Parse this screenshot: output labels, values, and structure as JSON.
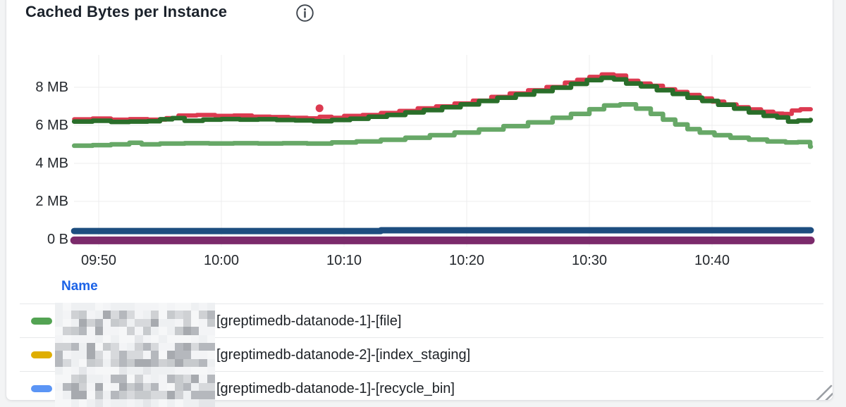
{
  "panel": {
    "title": "Cached Bytes per Instance",
    "info_icon": "info-circle-icon",
    "background": "#ffffff",
    "page_background": "#f3f4f5"
  },
  "chart_data": {
    "type": "line",
    "title": "Cached Bytes per Instance",
    "draw_style": "step-after",
    "grid": true,
    "grid_color": "#ececee",
    "x_axis": {
      "tick_labels": [
        "09:50",
        "10:00",
        "10:10",
        "10:20",
        "10:30",
        "10:40"
      ],
      "tick_minutes": [
        2,
        12,
        22,
        32,
        42,
        52
      ],
      "range_start": "09:48",
      "range_end": "10:48"
    },
    "y_axis": {
      "unit": "bytes",
      "tick_labels": [
        "8 MB",
        "6 MB",
        "4 MB",
        "2 MB",
        "0 B"
      ],
      "tick_mb": [
        8,
        6,
        4,
        2,
        0
      ],
      "ylim_mb": [
        -0.3,
        9.7
      ]
    },
    "series": [
      {
        "name": "series-crimson",
        "color": "#dc3a50",
        "width": 6,
        "points_min_mb": [
          [
            0,
            6.32
          ],
          [
            1.5,
            6.36
          ],
          [
            3,
            6.3
          ],
          [
            4.5,
            6.33
          ],
          [
            6,
            6.3
          ],
          [
            7.5,
            6.38
          ],
          [
            8.5,
            6.52
          ],
          [
            10,
            6.55
          ],
          [
            11.5,
            6.5
          ],
          [
            13,
            6.52
          ],
          [
            14.5,
            6.46
          ],
          [
            16,
            6.44
          ],
          [
            17.5,
            6.4
          ],
          [
            19,
            6.37
          ],
          [
            20,
            6.45
          ],
          [
            21,
            6.4
          ],
          [
            22,
            6.5
          ],
          [
            23.5,
            6.55
          ],
          [
            25,
            6.65
          ],
          [
            26.5,
            6.76
          ],
          [
            28,
            6.9
          ],
          [
            29.5,
            7.0
          ],
          [
            31,
            7.15
          ],
          [
            32.5,
            7.3
          ],
          [
            34,
            7.5
          ],
          [
            35.5,
            7.68
          ],
          [
            37,
            7.85
          ],
          [
            38.5,
            8.02
          ],
          [
            40,
            8.25
          ],
          [
            41,
            8.4
          ],
          [
            42,
            8.55
          ],
          [
            43,
            8.68
          ],
          [
            44,
            8.62
          ],
          [
            45,
            8.35
          ],
          [
            46,
            8.2
          ],
          [
            47,
            8.08
          ],
          [
            48,
            7.9
          ],
          [
            49,
            7.76
          ],
          [
            50,
            7.6
          ],
          [
            51,
            7.42
          ],
          [
            52,
            7.25
          ],
          [
            53,
            7.1
          ],
          [
            54,
            6.95
          ],
          [
            55,
            6.84
          ],
          [
            56,
            6.72
          ],
          [
            57,
            6.62
          ],
          [
            57.8,
            6.6
          ],
          [
            58.5,
            6.78
          ],
          [
            59.2,
            6.85
          ],
          [
            60,
            6.85
          ]
        ]
      },
      {
        "name": "series-dark-green",
        "color": "#2a6e2a",
        "width": 6.5,
        "points_min_mb": [
          [
            0,
            6.2
          ],
          [
            1.5,
            6.24
          ],
          [
            3,
            6.18
          ],
          [
            4.5,
            6.2
          ],
          [
            6,
            6.22
          ],
          [
            7,
            6.32
          ],
          [
            8,
            6.38
          ],
          [
            9,
            6.24
          ],
          [
            10.5,
            6.3
          ],
          [
            12,
            6.33
          ],
          [
            13.5,
            6.3
          ],
          [
            15,
            6.32
          ],
          [
            16.5,
            6.28
          ],
          [
            18,
            6.26
          ],
          [
            19.5,
            6.22
          ],
          [
            21,
            6.28
          ],
          [
            22.5,
            6.35
          ],
          [
            24,
            6.45
          ],
          [
            25.5,
            6.55
          ],
          [
            27,
            6.68
          ],
          [
            28.5,
            6.8
          ],
          [
            30,
            6.95
          ],
          [
            31.5,
            7.1
          ],
          [
            33,
            7.28
          ],
          [
            34.5,
            7.45
          ],
          [
            36,
            7.62
          ],
          [
            37.5,
            7.8
          ],
          [
            39,
            7.98
          ],
          [
            40.5,
            8.18
          ],
          [
            41.8,
            8.38
          ],
          [
            43,
            8.5
          ],
          [
            44,
            8.42
          ],
          [
            45,
            8.2
          ],
          [
            46.2,
            8.05
          ],
          [
            47.5,
            7.85
          ],
          [
            48.8,
            7.65
          ],
          [
            50,
            7.45
          ],
          [
            51.2,
            7.28
          ],
          [
            52.5,
            7.08
          ],
          [
            53.8,
            6.88
          ],
          [
            55,
            6.68
          ],
          [
            56.2,
            6.5
          ],
          [
            57.3,
            6.42
          ],
          [
            58.2,
            6.2
          ],
          [
            59,
            6.25
          ],
          [
            60,
            6.28
          ]
        ]
      },
      {
        "name": "series-medium-green",
        "color": "#67a867",
        "width": 6.5,
        "points_min_mb": [
          [
            0,
            4.93
          ],
          [
            1.5,
            4.96
          ],
          [
            3,
            5.0
          ],
          [
            4.5,
            5.08
          ],
          [
            5.5,
            5.0
          ],
          [
            7,
            5.04
          ],
          [
            9,
            5.06
          ],
          [
            11,
            5.05
          ],
          [
            13,
            5.06
          ],
          [
            15,
            5.05
          ],
          [
            17,
            5.06
          ],
          [
            19,
            5.04
          ],
          [
            21,
            5.1
          ],
          [
            23,
            5.15
          ],
          [
            25,
            5.24
          ],
          [
            27,
            5.35
          ],
          [
            29,
            5.48
          ],
          [
            31,
            5.62
          ],
          [
            33,
            5.78
          ],
          [
            35,
            5.96
          ],
          [
            37,
            6.16
          ],
          [
            39,
            6.4
          ],
          [
            40.5,
            6.6
          ],
          [
            42,
            6.85
          ],
          [
            43.2,
            7.05
          ],
          [
            44.5,
            7.1
          ],
          [
            45.8,
            6.88
          ],
          [
            47,
            6.6
          ],
          [
            48,
            6.3
          ],
          [
            49,
            6.05
          ],
          [
            50,
            5.8
          ],
          [
            51,
            5.62
          ],
          [
            52.2,
            5.48
          ],
          [
            53.5,
            5.35
          ],
          [
            55,
            5.25
          ],
          [
            56.5,
            5.15
          ],
          [
            58,
            5.1
          ],
          [
            59,
            5.12
          ],
          [
            60,
            4.88
          ]
        ]
      },
      {
        "name": "series-navy-blue",
        "color": "#1d4d7f",
        "width": 9,
        "points_min_mb": [
          [
            0,
            0.44
          ],
          [
            24,
            0.44
          ],
          [
            25,
            0.48
          ],
          [
            60,
            0.48
          ]
        ]
      },
      {
        "name": "series-purple",
        "color": "#7b2a6b",
        "width": 11,
        "points_min_mb": [
          [
            0,
            -0.05
          ],
          [
            60,
            -0.05
          ]
        ]
      }
    ],
    "outlier_point": {
      "series": "series-crimson",
      "t_min": 20,
      "value_mb": 6.9,
      "color": "#dc3a50"
    }
  },
  "legend": {
    "header": "Name",
    "header_color": "#1c63e7",
    "redacted_prefix": true,
    "rows": [
      {
        "color": "#53a353",
        "label": "[greptimedb-datanode-1]-[file]"
      },
      {
        "color": "#dfae00",
        "label": "[greptimedb-datanode-2]-[index_staging]"
      },
      {
        "color": "#5b95f5",
        "label": "[greptimedb-datanode-1]-[recycle_bin]"
      }
    ]
  }
}
